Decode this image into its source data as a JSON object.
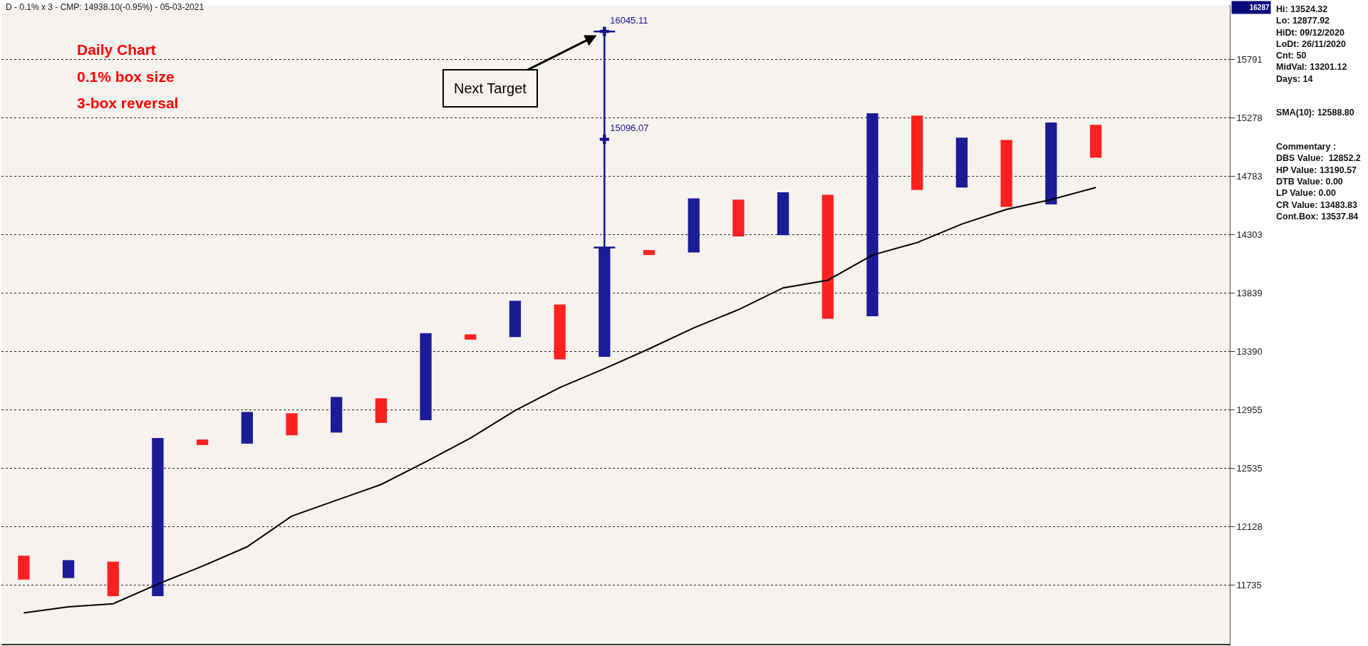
{
  "chart_data": {
    "type": "bar",
    "title": "D - 0.1% x 3 - CMP: 14938.10(-0.95%) - 05-03-2021",
    "subtitle": "Daily Chart\n0.1% box size\n3-box reversal",
    "categories": [
      null,
      null,
      null,
      null,
      null,
      null,
      null,
      null,
      null,
      null,
      null,
      null,
      null,
      null,
      null,
      null,
      null,
      null,
      null,
      null,
      null,
      null,
      null,
      null,
      null
    ],
    "series": [
      {
        "base": [
          11770,
          11780,
          11660,
          11660,
          12700,
          12710,
          12770,
          12790,
          12860,
          12880,
          13480,
          13500,
          13330,
          13350,
          14140,
          14160,
          14290,
          14300,
          13640,
          13660,
          14670,
          14690,
          14530,
          14550,
          14940
        ],
        "values": [
          160,
          120,
          230,
          1090,
          40,
          230,
          160,
          260,
          180,
          650,
          40,
          280,
          420,
          850,
          40,
          440,
          300,
          350,
          990,
          1660,
          630,
          420,
          560,
          690,
          280
        ],
        "colors": [
          "#ff2020",
          "#1c1c96",
          "#ff2020",
          "#1c1c96",
          "#ff2020",
          "#1c1c96",
          "#ff2020",
          "#1c1c96",
          "#ff2020",
          "#1c1c96",
          "#ff2020",
          "#1c1c96",
          "#ff2020",
          "#1c1c96",
          "#ff2020",
          "#1c1c96",
          "#ff2020",
          "#1c1c96",
          "#ff2020",
          "#1c1c96",
          "#ff2020",
          "#1c1c96",
          "#ff2020",
          "#1c1c96",
          "#ff2020"
        ]
      },
      {
        "type": "line",
        "color": "#000000",
        "values": [
          11550,
          11590,
          11610,
          11740,
          11860,
          11990,
          12200,
          12310,
          12420,
          12580,
          12750,
          12950,
          13120,
          13260,
          13410,
          13570,
          13710,
          13880,
          13940,
          14140,
          14240,
          14390,
          14510,
          14590,
          14690
        ]
      },
      {
        "type": "scatter",
        "color": "#14148c",
        "marker": "cross",
        "values": [
          null,
          null,
          null,
          null,
          null,
          null,
          null,
          null,
          null,
          null,
          null,
          null,
          null,
          16045.11,
          null,
          null,
          null,
          null,
          null,
          null,
          null,
          null,
          null,
          null,
          null
        ],
        "errors": [
          null,
          null,
          null,
          null,
          null,
          null,
          null,
          null,
          null,
          null,
          null,
          null,
          null,
          [
            14200,
            16045.11
          ],
          null,
          null,
          null,
          null,
          null,
          null,
          null,
          null,
          null,
          null,
          null
        ],
        "value_labels": [
          null,
          null,
          null,
          null,
          null,
          null,
          null,
          null,
          null,
          null,
          null,
          null,
          null,
          "16045.11",
          null,
          null,
          null,
          null,
          null,
          null,
          null,
          null,
          null,
          null,
          null
        ]
      },
      {
        "type": "scatter",
        "color": "#14148c",
        "marker": "cross",
        "values": [
          null,
          null,
          null,
          null,
          null,
          null,
          null,
          null,
          null,
          null,
          null,
          null,
          null,
          15096.07,
          null,
          null,
          null,
          null,
          null,
          null,
          null,
          null,
          null,
          null,
          null
        ],
        "value_labels": [
          null,
          null,
          null,
          null,
          null,
          null,
          null,
          null,
          null,
          null,
          null,
          null,
          null,
          "15096.07",
          null,
          null,
          null,
          null,
          null,
          null,
          null,
          null,
          null,
          null,
          null
        ]
      }
    ],
    "ylim": [
      11350,
      16287
    ],
    "yticks": [
      11735,
      12128,
      12535,
      12955,
      13390,
      13839,
      14303,
      14783,
      15278,
      15791
    ],
    "log": true,
    "grid": "y",
    "tick_labels": "y",
    "annotations": [
      "Hi: 13524.32\nLo: 12877.92\nHiDt: 09/12/2020\nLoDt: 26/11/2020\nCnt: 50\nMidVal: 13201.12\nDays: 14",
      "SMA(10): 12588.80",
      "Commentary :\nDBS Value:  12852.2\nHP Value: 13190.57\nDTB Value: 0.00\nLP Value: 0.00\nCR Value: 13483.83\nCont.Box: 13537.84",
      "Next Target",
      "16287"
    ]
  }
}
